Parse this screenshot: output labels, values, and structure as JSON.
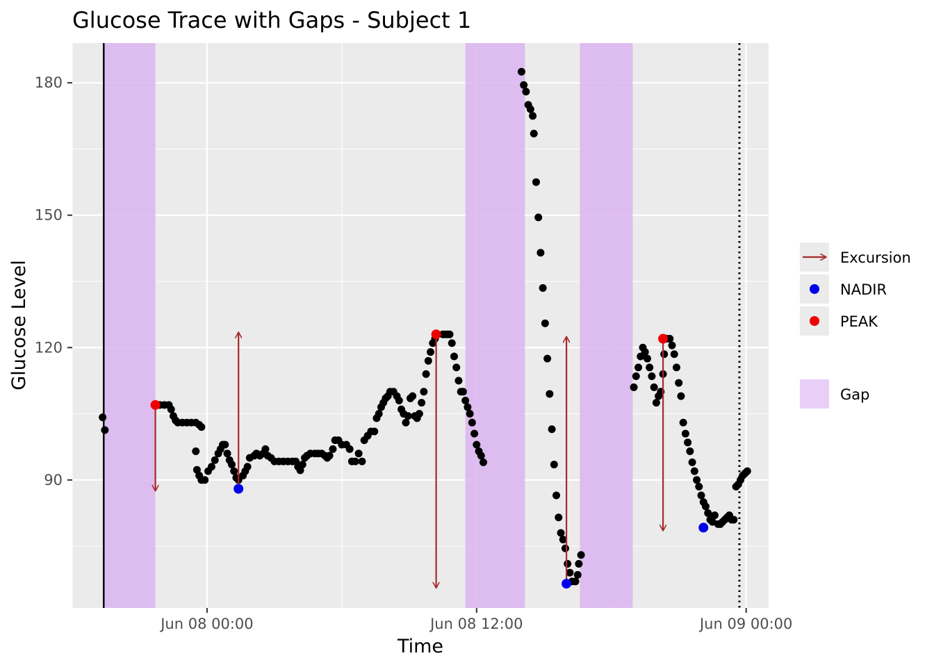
{
  "chart_data": {
    "type": "scatter",
    "title": "Glucose Trace with Gaps - Subject 1",
    "xlabel": "Time",
    "ylabel": "Glucose Level",
    "x_unit": "hours relative to Jun 08 00:00",
    "xlim": [
      -6.0,
      25.0
    ],
    "ylim": [
      61,
      189
    ],
    "x_ticks": [
      {
        "value": 0,
        "label": "Jun 08 00:00"
      },
      {
        "value": 12,
        "label": "Jun 08 12:00"
      },
      {
        "value": 24,
        "label": "Jun 09 00:00"
      }
    ],
    "y_ticks": [
      {
        "value": 90,
        "label": "90"
      },
      {
        "value": 120,
        "label": "120"
      },
      {
        "value": 150,
        "label": "150"
      },
      {
        "value": 180,
        "label": "180"
      }
    ],
    "grid": true,
    "vlines": [
      {
        "x": -4.6,
        "style": "solid"
      },
      {
        "x": 23.7,
        "style": "dotted"
      }
    ],
    "gaps": [
      {
        "start": -4.6,
        "end": -2.3
      },
      {
        "start": 11.5,
        "end": 14.15
      },
      {
        "start": 16.6,
        "end": 18.95
      }
    ],
    "series": [
      {
        "name": "",
        "color": "#000000",
        "points": [
          [
            -4.65,
            104.2
          ],
          [
            -4.55,
            101.3
          ],
          [
            -2.3,
            107.0
          ],
          [
            -2.1,
            107.0
          ],
          [
            -1.9,
            107.0
          ],
          [
            -1.7,
            107.0
          ],
          [
            -1.6,
            106.0
          ],
          [
            -1.5,
            104.5
          ],
          [
            -1.4,
            103.5
          ],
          [
            -1.3,
            103.0
          ],
          [
            -1.1,
            103.0
          ],
          [
            -0.9,
            103.0
          ],
          [
            -0.7,
            103.0
          ],
          [
            -0.5,
            103.0
          ],
          [
            -0.35,
            102.5
          ],
          [
            -0.25,
            102.0
          ],
          [
            -0.5,
            96.5
          ],
          [
            -0.45,
            92.3
          ],
          [
            -0.35,
            91.0
          ],
          [
            -0.25,
            90.0
          ],
          [
            -0.1,
            90.0
          ],
          [
            0.05,
            92.0
          ],
          [
            0.2,
            93.0
          ],
          [
            0.35,
            94.5
          ],
          [
            0.5,
            96.0
          ],
          [
            0.6,
            97.0
          ],
          [
            0.7,
            98.0
          ],
          [
            0.8,
            98.0
          ],
          [
            0.9,
            96.0
          ],
          [
            1.0,
            94.5
          ],
          [
            1.1,
            93.5
          ],
          [
            1.2,
            92.0
          ],
          [
            1.3,
            90.5
          ],
          [
            1.4,
            90.0
          ],
          [
            1.6,
            91.0
          ],
          [
            1.7,
            92.0
          ],
          [
            1.8,
            93.0
          ],
          [
            1.9,
            95.0
          ],
          [
            2.1,
            95.5
          ],
          [
            2.2,
            96.0
          ],
          [
            2.35,
            95.5
          ],
          [
            2.5,
            96.0
          ],
          [
            2.6,
            97.0
          ],
          [
            2.7,
            95.5
          ],
          [
            2.85,
            95.0
          ],
          [
            3.0,
            94.2
          ],
          [
            3.2,
            94.2
          ],
          [
            3.4,
            94.2
          ],
          [
            3.6,
            94.2
          ],
          [
            3.8,
            94.2
          ],
          [
            3.95,
            94.2
          ],
          [
            4.05,
            93.0
          ],
          [
            4.15,
            92.2
          ],
          [
            4.25,
            93.5
          ],
          [
            4.35,
            95.0
          ],
          [
            4.45,
            95.5
          ],
          [
            4.6,
            96.0
          ],
          [
            4.8,
            96.0
          ],
          [
            4.95,
            96.0
          ],
          [
            5.1,
            96.0
          ],
          [
            5.25,
            95.5
          ],
          [
            5.35,
            95.0
          ],
          [
            5.45,
            95.5
          ],
          [
            5.6,
            97.0
          ],
          [
            5.7,
            99.0
          ],
          [
            5.85,
            99.0
          ],
          [
            6.0,
            98.0
          ],
          [
            6.2,
            98.0
          ],
          [
            6.35,
            97.0
          ],
          [
            6.45,
            94.2
          ],
          [
            6.6,
            94.2
          ],
          [
            6.75,
            96.0
          ],
          [
            6.9,
            94.2
          ],
          [
            7.0,
            99.0
          ],
          [
            7.15,
            100.0
          ],
          [
            7.3,
            101.0
          ],
          [
            7.45,
            101.0
          ],
          [
            7.55,
            104.0
          ],
          [
            7.65,
            105.0
          ],
          [
            7.75,
            106.5
          ],
          [
            7.85,
            107.5
          ],
          [
            7.95,
            108.5
          ],
          [
            8.05,
            109.0
          ],
          [
            8.15,
            110.0
          ],
          [
            8.3,
            110.0
          ],
          [
            8.45,
            109.0
          ],
          [
            8.55,
            108.0
          ],
          [
            8.65,
            106.0
          ],
          [
            8.75,
            105.0
          ],
          [
            8.85,
            103.0
          ],
          [
            8.95,
            104.5
          ],
          [
            9.05,
            108.5
          ],
          [
            9.15,
            109.0
          ],
          [
            9.25,
            104.5
          ],
          [
            9.35,
            104.0
          ],
          [
            9.45,
            105.0
          ],
          [
            9.55,
            107.5
          ],
          [
            9.65,
            110.0
          ],
          [
            9.75,
            114.0
          ],
          [
            9.85,
            117.0
          ],
          [
            9.95,
            119.0
          ],
          [
            10.05,
            121.0
          ],
          [
            10.15,
            122.0
          ],
          [
            10.25,
            123.0
          ],
          [
            10.5,
            123.0
          ],
          [
            10.6,
            123.0
          ],
          [
            10.7,
            123.0
          ],
          [
            10.8,
            123.0
          ],
          [
            10.9,
            121.0
          ],
          [
            11.0,
            118.0
          ],
          [
            11.1,
            115.5
          ],
          [
            11.2,
            112.5
          ],
          [
            11.3,
            110.0
          ],
          [
            11.4,
            110.0
          ],
          [
            11.5,
            108.0
          ],
          [
            11.6,
            106.5
          ],
          [
            11.7,
            105.0
          ],
          [
            11.8,
            103.0
          ],
          [
            11.9,
            100.5
          ],
          [
            12.0,
            98.0
          ],
          [
            12.1,
            96.5
          ],
          [
            12.2,
            95.5
          ],
          [
            12.3,
            94.0
          ],
          [
            14.0,
            182.5
          ],
          [
            14.1,
            179.5
          ],
          [
            14.2,
            178.0
          ],
          [
            14.3,
            175.0
          ],
          [
            14.4,
            174.0
          ],
          [
            14.5,
            172.5
          ],
          [
            14.55,
            168.5
          ],
          [
            14.65,
            157.5
          ],
          [
            14.75,
            149.5
          ],
          [
            14.85,
            141.5
          ],
          [
            14.95,
            133.5
          ],
          [
            15.05,
            125.5
          ],
          [
            15.15,
            117.5
          ],
          [
            15.25,
            109.5
          ],
          [
            15.35,
            101.5
          ],
          [
            15.45,
            93.5
          ],
          [
            15.55,
            86.5
          ],
          [
            15.65,
            81.5
          ],
          [
            15.75,
            78.0
          ],
          [
            15.85,
            76.5
          ],
          [
            15.95,
            74.5
          ],
          [
            16.05,
            71.0
          ],
          [
            16.15,
            69.0
          ],
          [
            16.25,
            67.0
          ],
          [
            16.4,
            67.0
          ],
          [
            16.5,
            68.5
          ],
          [
            16.55,
            71.0
          ],
          [
            16.65,
            73.0
          ],
          [
            19.0,
            111.0
          ],
          [
            19.1,
            113.5
          ],
          [
            19.2,
            115.5
          ],
          [
            19.3,
            118.0
          ],
          [
            19.4,
            120.0
          ],
          [
            19.5,
            119.0
          ],
          [
            19.6,
            117.5
          ],
          [
            19.7,
            115.5
          ],
          [
            19.8,
            113.5
          ],
          [
            19.9,
            111.0
          ],
          [
            20.0,
            107.5
          ],
          [
            20.1,
            109.0
          ],
          [
            20.2,
            110.0
          ],
          [
            20.3,
            114.0
          ],
          [
            20.35,
            118.5
          ],
          [
            20.45,
            122.0
          ],
          [
            20.6,
            122.0
          ],
          [
            20.7,
            120.5
          ],
          [
            20.8,
            118.5
          ],
          [
            20.9,
            115.5
          ],
          [
            21.0,
            112.0
          ],
          [
            21.1,
            109.0
          ],
          [
            21.2,
            103.0
          ],
          [
            21.3,
            100.5
          ],
          [
            21.4,
            98.5
          ],
          [
            21.5,
            96.5
          ],
          [
            21.6,
            94.0
          ],
          [
            21.7,
            92.0
          ],
          [
            21.8,
            90.0
          ],
          [
            21.9,
            88.5
          ],
          [
            22.0,
            86.5
          ],
          [
            22.1,
            85.0
          ],
          [
            22.2,
            84.0
          ],
          [
            22.3,
            82.5
          ],
          [
            22.4,
            81.0
          ],
          [
            22.5,
            80.5
          ],
          [
            22.6,
            82.0
          ],
          [
            22.75,
            80.0
          ],
          [
            22.85,
            80.0
          ],
          [
            22.95,
            80.5
          ],
          [
            23.05,
            81.0
          ],
          [
            23.15,
            81.5
          ],
          [
            23.25,
            82.0
          ],
          [
            23.35,
            81.0
          ],
          [
            23.45,
            81.0
          ],
          [
            23.55,
            88.5
          ],
          [
            23.65,
            89.0
          ],
          [
            23.75,
            90.0
          ],
          [
            23.85,
            91.0
          ],
          [
            23.95,
            91.5
          ],
          [
            24.05,
            92.0
          ]
        ]
      },
      {
        "name": "NADIR",
        "color": "#0000ee",
        "points": [
          [
            1.4,
            88.0
          ],
          [
            16.0,
            66.5
          ],
          [
            22.1,
            79.2
          ]
        ]
      },
      {
        "name": "PEAK",
        "color": "#ee0000",
        "points": [
          [
            -2.3,
            107.0
          ],
          [
            10.2,
            123.0
          ],
          [
            20.3,
            122.0
          ]
        ]
      }
    ],
    "excursions": [
      {
        "x": -2.3,
        "from": 107.0,
        "to": 87.5
      },
      {
        "x": 1.4,
        "from": 88.5,
        "to": 123.5
      },
      {
        "x": 10.2,
        "from": 123.0,
        "to": 65.5
      },
      {
        "x": 16.0,
        "from": 67.0,
        "to": 122.5
      },
      {
        "x": 20.3,
        "from": 122.0,
        "to": 78.5
      }
    ],
    "excursion_color": "#a52a2a",
    "gap_color": "#dab4f0",
    "legend": {
      "position": "right",
      "items": [
        {
          "label": "Excursion",
          "kind": "arrow",
          "color": "#a52a2a"
        },
        {
          "label": "NADIR",
          "kind": "point",
          "color": "#0000ee"
        },
        {
          "label": "PEAK",
          "kind": "point",
          "color": "#ee0000"
        },
        {
          "label": "Gap",
          "kind": "fill",
          "color": "#e8cff8"
        }
      ]
    }
  }
}
